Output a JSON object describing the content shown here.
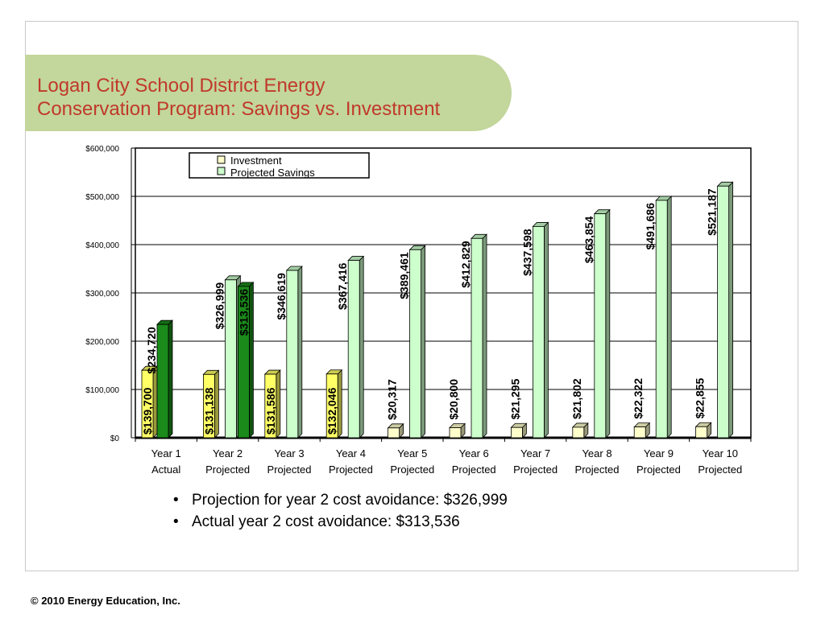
{
  "title": {
    "line1": "Logan City School District Energy",
    "line2": "Conservation Program: Savings vs. Investment"
  },
  "colors": {
    "title": "#c0392b",
    "banner": "#c3d69b",
    "investment_yellow": "#ffff66",
    "investment_pale": "#ffffcc",
    "savings_dark_green": "#1a8a1a",
    "savings_light_green": "#ccffcc"
  },
  "chart_data": {
    "type": "bar",
    "categories": [
      [
        "Year 1",
        "Actual"
      ],
      [
        "Year 2",
        "Projected"
      ],
      [
        "Year 3",
        "Projected"
      ],
      [
        "Year 4",
        "Projected"
      ],
      [
        "Year 5",
        "Projected"
      ],
      [
        "Year 6",
        "Projected"
      ],
      [
        "Year 7",
        "Projected"
      ],
      [
        "Year 8",
        "Projected"
      ],
      [
        "Year 9",
        "Projected"
      ],
      [
        "Year 10",
        "Projected"
      ]
    ],
    "series": [
      {
        "name": "Investment",
        "values": [
          139700,
          131138,
          131586,
          132046,
          20317,
          20800,
          21295,
          21802,
          22322,
          22855
        ],
        "labels": [
          "$139,700",
          "$131,138",
          "$131,586",
          "$132,046",
          "$20,317",
          "$20,800",
          "$21,295",
          "$21,802",
          "$22,322",
          "$22,855"
        ]
      },
      {
        "name": "Projected Savings",
        "values": [
          234720,
          326999,
          346619,
          367416,
          389461,
          412829,
          437598,
          463854,
          491686,
          521187
        ],
        "labels": [
          "$234,720",
          "$326,999",
          "$346,619",
          "$367,416",
          "$389,461",
          "$412,829",
          "$437,598",
          "$463,854",
          "$491,686",
          "$521,187"
        ]
      }
    ],
    "extra_bars": [
      {
        "category_index": 1,
        "value": 313536,
        "label": "$313,536"
      }
    ],
    "y_ticks": [
      "$0",
      "$100,000",
      "$200,000",
      "$300,000",
      "$400,000",
      "$500,000",
      "$600,000"
    ],
    "ylim": [
      0,
      600000
    ],
    "y_step": 100000,
    "grid": true,
    "legend_position": "top-center",
    "xlabel": "",
    "ylabel": ""
  },
  "bullets": [
    "Projection for year 2 cost avoidance: $326,999",
    "Actual year 2 cost avoidance: $313,536"
  ],
  "footer": "© 2010 Energy Education, Inc."
}
